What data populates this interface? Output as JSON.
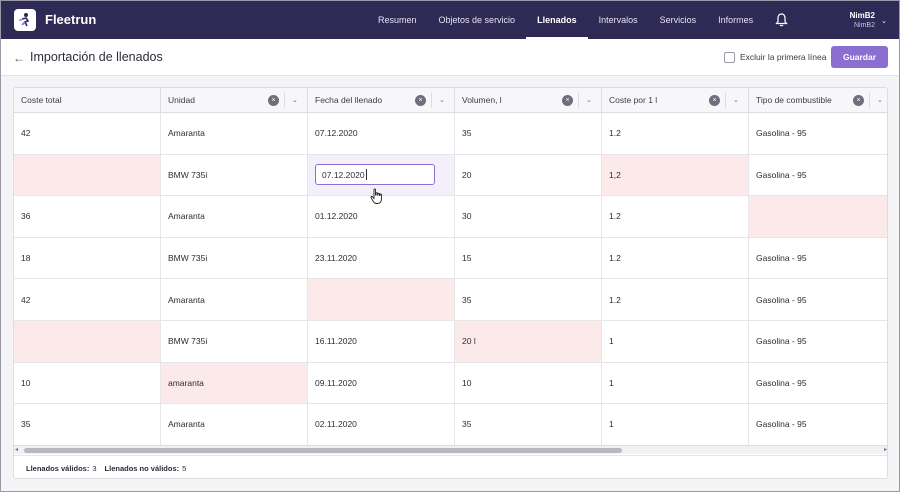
{
  "app": {
    "brand": "Fleetrun"
  },
  "nav": {
    "items": [
      {
        "label": "Resumen"
      },
      {
        "label": "Objetos de servicio"
      },
      {
        "label": "Llenados",
        "active": true
      },
      {
        "label": "Intervalos"
      },
      {
        "label": "Servicios"
      },
      {
        "label": "Informes"
      }
    ]
  },
  "user": {
    "name": "NimB2",
    "sub": "NimB2"
  },
  "page": {
    "back": "←",
    "title": "Importación de llenados",
    "exclude_label": "Excluir la primera línea",
    "save_label": "Guardar"
  },
  "table": {
    "columns": [
      "Coste total",
      "Unidad",
      "Fecha del llenado",
      "Volumen, l",
      "Coste por 1 l",
      "Tipo de combustible"
    ],
    "rows": [
      [
        "42",
        "Amaranta",
        "07.12.2020",
        "35",
        "1.2",
        "Gasolina - 95"
      ],
      [
        "",
        "BMW 735i",
        "07.12.2020",
        "20",
        "1,2",
        "Gasolina - 95"
      ],
      [
        "36",
        "Amaranta",
        "01.12.2020",
        "30",
        "1.2",
        ""
      ],
      [
        "18",
        "BMW 735i",
        "23.11.2020",
        "15",
        "1.2",
        "Gasolina - 95"
      ],
      [
        "42",
        "Amaranta",
        "",
        "35",
        "1.2",
        "Gasolina - 95"
      ],
      [
        "",
        "BMW 735i",
        "16.11.2020",
        "20 l",
        "1",
        "Gasolina - 95"
      ],
      [
        "10",
        "amaranta",
        "09.11.2020",
        "10",
        "1",
        "Gasolina - 95"
      ],
      [
        "35",
        "Amaranta",
        "02.11.2020",
        "35",
        "1",
        "Gasolina - 95"
      ]
    ],
    "errors": [
      [
        1,
        0
      ],
      [
        1,
        4
      ],
      [
        2,
        5
      ],
      [
        4,
        2
      ],
      [
        5,
        0
      ],
      [
        5,
        3
      ],
      [
        6,
        1
      ]
    ],
    "editing": [
      1,
      2
    ]
  },
  "footer": {
    "valid_label": "Llenados válidos:",
    "valid_count": "3",
    "invalid_label": "Llenados no válidos:",
    "invalid_count": "5"
  },
  "colors": {
    "topbar": "#2f2956",
    "accent": "#8b6fd0",
    "error_bg": "#fce9ea"
  }
}
